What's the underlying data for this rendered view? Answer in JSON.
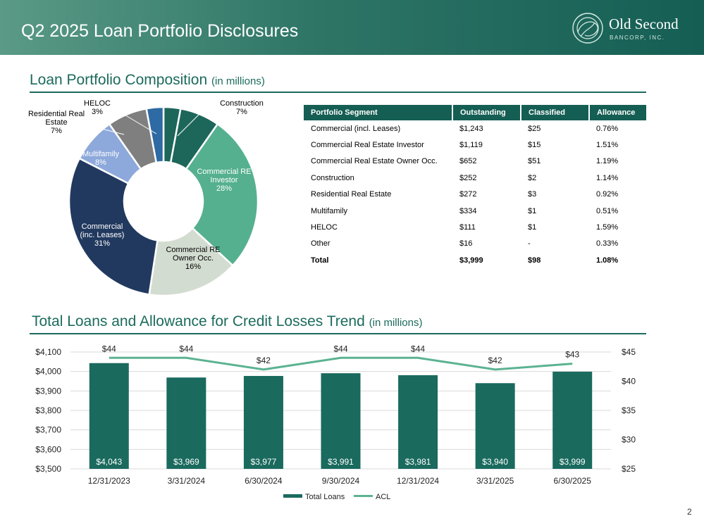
{
  "header": {
    "title": "Q2 2025 Loan Portfolio Disclosures"
  },
  "logo": {
    "name": "Old Second",
    "sub": "BANCORP, INC."
  },
  "page_number": "2",
  "composition": {
    "title": "Loan Portfolio Composition",
    "unit": "(in millions)"
  },
  "trend": {
    "title": "Total Loans and Allowance for Credit Losses Trend",
    "unit": "(in millions)"
  },
  "colors": {
    "brand": "#155e54",
    "bar": "#1a6a5e",
    "acl_line": "#5bb391",
    "construction": "#1d665a",
    "cre_investor": "#55b08f",
    "cre_owner": "#d3dcd0",
    "commercial": "#22395f",
    "multifamily": "#8da8db",
    "residential": "#7f7f7f",
    "heloc": "#2e6aa3"
  },
  "table": {
    "headers": [
      "Portfolio Segment",
      "Outstanding",
      "Classified",
      "Allowance"
    ],
    "rows": [
      [
        "Commercial (incl. Leases)",
        "$1,243",
        "$25",
        "0.76%"
      ],
      [
        "Commercial Real Estate Investor",
        "$1,119",
        "$15",
        "1.51%"
      ],
      [
        "Commercial Real Estate Owner Occ.",
        "$652",
        "$51",
        "1.19%"
      ],
      [
        "Construction",
        "$252",
        "$2",
        "1.14%"
      ],
      [
        "Residential Real Estate",
        "$272",
        "$3",
        "0.92%"
      ],
      [
        "Multifamily",
        "$334",
        "$1",
        "0.51%"
      ],
      [
        "HELOC",
        "$111",
        "$1",
        "1.59%"
      ],
      [
        "Other",
        "$16",
        "-",
        "0.33%"
      ]
    ],
    "total": [
      "Total",
      "$3,999",
      "$98",
      "1.08%"
    ]
  },
  "chart_data": [
    {
      "type": "pie",
      "donut": true,
      "slices": [
        {
          "label": "Construction",
          "value": 7,
          "display": "7%",
          "color": "#1d665a"
        },
        {
          "label": "Commercial RE Investor",
          "value": 28,
          "display": "28%",
          "color": "#55b08f"
        },
        {
          "label": "Commercial RE Owner Occ.",
          "value": 16,
          "display": "16%",
          "color": "#d3dcd0"
        },
        {
          "label": "Commercial (incl. Leases)",
          "value": 31,
          "display": "31%",
          "color": "#22395f"
        },
        {
          "label": "Multifamily",
          "value": 8,
          "display": "8%",
          "color": "#8da8db"
        },
        {
          "label": "Residential Real Estate",
          "value": 7,
          "display": "7%",
          "color": "#7f7f7f"
        },
        {
          "label": "HELOC",
          "value": 3,
          "display": "3%",
          "color": "#2e6aa3"
        }
      ]
    },
    {
      "type": "bar",
      "categories": [
        "12/31/2023",
        "3/31/2024",
        "6/30/2024",
        "9/30/2024",
        "12/31/2024",
        "3/31/2025",
        "6/30/2025"
      ],
      "series": [
        {
          "name": "Total Loans",
          "type": "bar",
          "axis": "left",
          "values": [
            4043,
            3969,
            3977,
            3991,
            3981,
            3940,
            3999
          ],
          "labels": [
            "$4,043",
            "$3,969",
            "$3,977",
            "$3,991",
            "$3,981",
            "$3,940",
            "$3,999"
          ],
          "color": "#1a6a5e"
        },
        {
          "name": "ACL",
          "type": "line",
          "axis": "right",
          "values": [
            44,
            44,
            42,
            44,
            44,
            42,
            43
          ],
          "labels": [
            "$44",
            "$44",
            "$42",
            "$44",
            "$44",
            "$42",
            "$43"
          ],
          "color": "#5bb391"
        }
      ],
      "ylim": [
        3500,
        4100
      ],
      "y_ticks": [
        "$3,500",
        "$3,600",
        "$3,700",
        "$3,800",
        "$3,900",
        "$4,000",
        "$4,100"
      ],
      "y2lim": [
        25,
        45
      ],
      "y2_ticks": [
        "$25",
        "$30",
        "$35",
        "$40",
        "$45"
      ],
      "grid": true,
      "legend": "bottom"
    }
  ]
}
